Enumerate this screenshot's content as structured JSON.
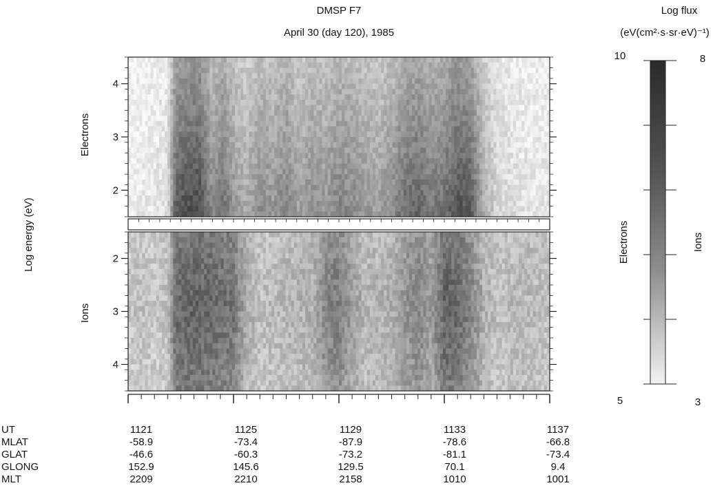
{
  "chart_data": {
    "type": "heatmap",
    "title": "DMSP F7",
    "subtitle": "April 30 (day 120), 1985",
    "ylabel": "Log energy (eV)",
    "panels": [
      {
        "name": "Electrons",
        "y_ticks": [
          "4",
          "3",
          "2"
        ],
        "ylim": [
          1.5,
          4.5
        ],
        "x": [
          "1121",
          "1125",
          "1129",
          "1133",
          "1137"
        ],
        "intensity_profile": [
          [
            1121.0,
            0.05
          ],
          [
            1121.5,
            0.08
          ],
          [
            1122.0,
            0.1
          ],
          [
            1122.5,
            0.15
          ],
          [
            1122.8,
            0.8
          ],
          [
            1123.2,
            0.85
          ],
          [
            1123.7,
            0.9
          ],
          [
            1124.2,
            0.55
          ],
          [
            1124.6,
            0.7
          ],
          [
            1125.0,
            0.5
          ],
          [
            1125.5,
            0.4
          ],
          [
            1126.0,
            0.55
          ],
          [
            1126.5,
            0.5
          ],
          [
            1127.0,
            0.6
          ],
          [
            1127.5,
            0.45
          ],
          [
            1128.0,
            0.55
          ],
          [
            1128.5,
            0.5
          ],
          [
            1129.0,
            0.6
          ],
          [
            1129.5,
            0.55
          ],
          [
            1130.0,
            0.5
          ],
          [
            1130.5,
            0.45
          ],
          [
            1131.0,
            0.55
          ],
          [
            1131.5,
            0.7
          ],
          [
            1132.0,
            0.75
          ],
          [
            1132.5,
            0.65
          ],
          [
            1133.0,
            0.7
          ],
          [
            1133.5,
            0.85
          ],
          [
            1134.0,
            0.8
          ],
          [
            1134.5,
            0.4
          ],
          [
            1135.0,
            0.2
          ],
          [
            1135.5,
            0.15
          ],
          [
            1136.0,
            0.12
          ],
          [
            1137.0,
            0.1
          ]
        ]
      },
      {
        "name": "Ions",
        "y_ticks": [
          "2",
          "3",
          "4"
        ],
        "ylim": [
          1.5,
          4.5
        ],
        "inverted": true,
        "x": [
          "1121",
          "1125",
          "1129",
          "1133",
          "1137"
        ],
        "intensity_profile": [
          [
            1121.0,
            0.3
          ],
          [
            1121.5,
            0.35
          ],
          [
            1122.0,
            0.3
          ],
          [
            1122.5,
            0.35
          ],
          [
            1122.8,
            0.85
          ],
          [
            1123.5,
            0.9
          ],
          [
            1124.2,
            0.85
          ],
          [
            1125.0,
            0.8
          ],
          [
            1125.5,
            0.45
          ],
          [
            1126.0,
            0.35
          ],
          [
            1127.0,
            0.4
          ],
          [
            1128.0,
            0.45
          ],
          [
            1128.5,
            0.7
          ],
          [
            1129.0,
            0.75
          ],
          [
            1129.5,
            0.55
          ],
          [
            1130.0,
            0.4
          ],
          [
            1131.0,
            0.45
          ],
          [
            1131.5,
            0.6
          ],
          [
            1132.0,
            0.7
          ],
          [
            1132.5,
            0.55
          ],
          [
            1133.0,
            0.9
          ],
          [
            1133.5,
            0.85
          ],
          [
            1134.0,
            0.7
          ],
          [
            1134.5,
            0.45
          ],
          [
            1135.0,
            0.35
          ],
          [
            1136.0,
            0.4
          ],
          [
            1137.0,
            0.35
          ]
        ]
      }
    ],
    "colorbar": {
      "title_line1": "Log flux",
      "title_line2": "(eV(cm²·s·sr·eV)⁻¹)",
      "electrons_label": "Electrons",
      "ions_label": "Ions",
      "electrons_range": [
        "10",
        "5"
      ],
      "ions_range": [
        "8",
        "3"
      ]
    },
    "table": {
      "rows": [
        {
          "label": "UT",
          "values": [
            "1121",
            "1125",
            "1129",
            "1133",
            "1137"
          ]
        },
        {
          "label": "MLAT",
          "values": [
            "-58.9",
            "-73.4",
            "-87.9",
            "-78.6",
            "-66.8"
          ]
        },
        {
          "label": "GLAT",
          "values": [
            "-46.6",
            "-60.3",
            "-73.2",
            "-81.1",
            "-73.4"
          ]
        },
        {
          "label": "GLONG",
          "values": [
            "152.9",
            "145.6",
            "129.5",
            "70.1",
            "9.4"
          ]
        },
        {
          "label": "MLT",
          "values": [
            "2209",
            "2210",
            "2158",
            "1010",
            "1001"
          ]
        }
      ]
    }
  }
}
